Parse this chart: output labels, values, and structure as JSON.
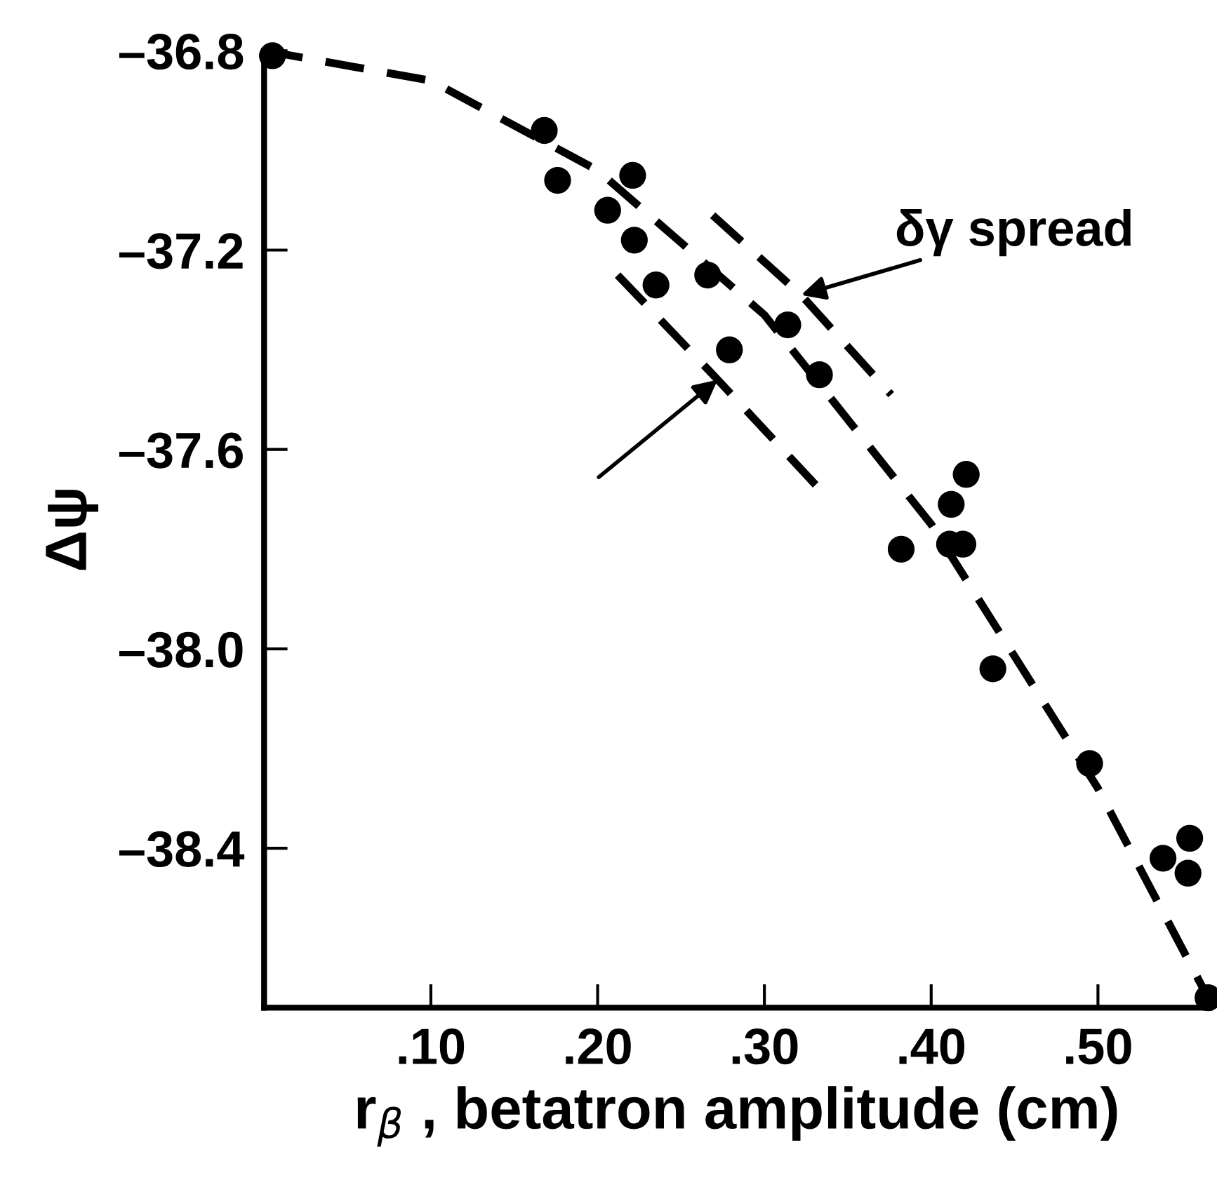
{
  "chart_data": {
    "type": "scatter",
    "xlabel": "r$_{β}$ , betatron amplitude (cm)",
    "ylabel": "Δψ",
    "xlim": [
      0,
      0.567
    ],
    "ylim": [
      -38.72,
      -36.8
    ],
    "xticks": [
      {
        "value": 0.1,
        "label": ".10"
      },
      {
        "value": 0.2,
        "label": ".20"
      },
      {
        "value": 0.3,
        "label": ".30"
      },
      {
        "value": 0.4,
        "label": ".40"
      },
      {
        "value": 0.5,
        "label": ".50"
      }
    ],
    "yticks": [
      {
        "value": -36.8,
        "label": "–36.8"
      },
      {
        "value": -37.2,
        "label": "–37.2"
      },
      {
        "value": -37.6,
        "label": "–37.6"
      },
      {
        "value": -38.0,
        "label": "–38.0"
      },
      {
        "value": -38.4,
        "label": "–38.4"
      }
    ],
    "grid": false,
    "legend": false,
    "series": [
      {
        "color": "#000000",
        "marker": "circle",
        "x": [
          0.005,
          0.168,
          0.176,
          0.206,
          0.221,
          0.222,
          0.235,
          0.266,
          0.279,
          0.314,
          0.333,
          0.382,
          0.412,
          0.421,
          0.411,
          0.419,
          0.437,
          0.495,
          0.539,
          0.555,
          0.554,
          0.566
        ],
        "values": [
          -36.81,
          -36.96,
          -37.06,
          -37.12,
          -37.05,
          -37.18,
          -37.27,
          -37.25,
          -37.4,
          -37.35,
          -37.45,
          -37.8,
          -37.71,
          -37.65,
          -37.79,
          -37.79,
          -38.04,
          -38.23,
          -38.42,
          -38.38,
          -38.45,
          -38.7
        ]
      },
      {
        "type": "line",
        "color": "#000000",
        "line_style": "dashed",
        "x": [
          0,
          0.1,
          0.2,
          0.3,
          0.4,
          0.5,
          0.566
        ],
        "values": [
          -36.8,
          -36.86,
          -37.04,
          -37.33,
          -37.75,
          -38.28,
          -38.7
        ]
      },
      {
        "type": "line",
        "color": "#000000",
        "line_style": "dashed",
        "x": [
          0.269,
          0.322,
          0.376
        ],
        "values": [
          -37.13,
          -37.29,
          -37.49
        ]
      },
      {
        "type": "line",
        "color": "#000000",
        "line_style": "dashed",
        "x": [
          0.212,
          0.272,
          0.336
        ],
        "values": [
          -37.25,
          -37.46,
          -37.69
        ]
      }
    ],
    "annotations": [
      {
        "text": "δγ spread",
        "x": 0.322,
        "y": -37.29
      }
    ]
  }
}
